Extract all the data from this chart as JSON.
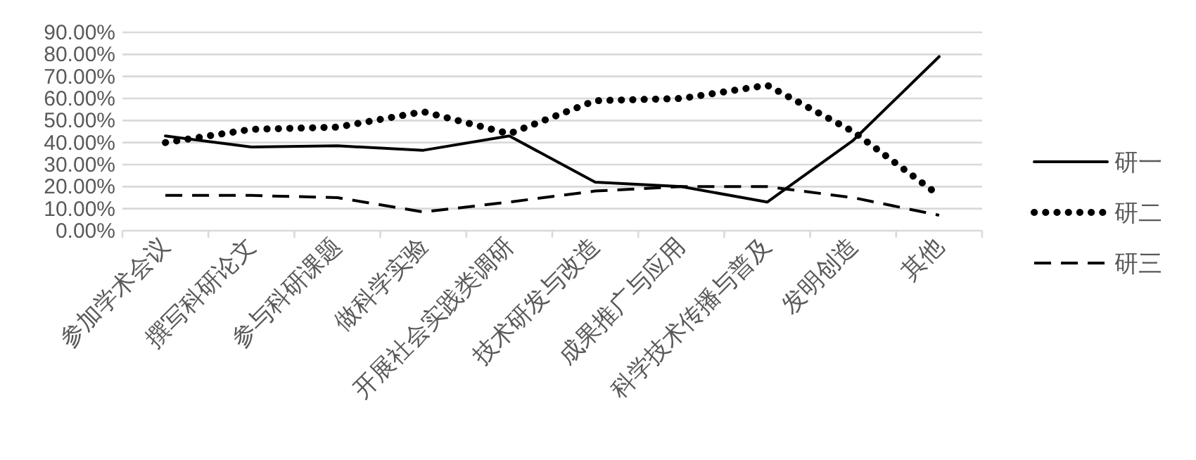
{
  "chart_data": {
    "type": "line",
    "categories": [
      "参加学术会议",
      "撰写科研论文",
      "参与科研课题",
      "做科学实验",
      "开展社会实践类调研",
      "技术研发与改造",
      "成果推广与应用",
      "科学技术传播与普及",
      "发明创造",
      "其他"
    ],
    "series": [
      {
        "name": "研一",
        "color": "#000000",
        "line_style": "solid",
        "values": [
          43,
          38,
          38.5,
          36.5,
          43,
          22,
          20,
          13,
          41,
          79
        ]
      },
      {
        "name": "研二",
        "color": "#000000",
        "line_style": "dotted",
        "values": [
          40,
          46,
          47,
          54,
          44,
          59,
          60,
          66,
          45,
          16
        ]
      },
      {
        "name": "研三",
        "color": "#000000",
        "line_style": "dashed",
        "values": [
          16,
          16,
          15,
          8.5,
          13,
          18,
          20,
          20,
          15,
          7
        ]
      }
    ],
    "ylim": [
      0,
      90
    ],
    "yticks": [
      {
        "value": 0,
        "label": "0.00%"
      },
      {
        "value": 10,
        "label": "10.00%"
      },
      {
        "value": 20,
        "label": "20.00%"
      },
      {
        "value": 30,
        "label": "30.00%"
      },
      {
        "value": 40,
        "label": "40.00%"
      },
      {
        "value": 50,
        "label": "50.00%"
      },
      {
        "value": 60,
        "label": "60.00%"
      },
      {
        "value": 70,
        "label": "70.00%"
      },
      {
        "value": 80,
        "label": "80.00%"
      },
      {
        "value": 90,
        "label": "90.00%"
      }
    ],
    "grid": "y",
    "legend": "right",
    "marker": "none"
  }
}
